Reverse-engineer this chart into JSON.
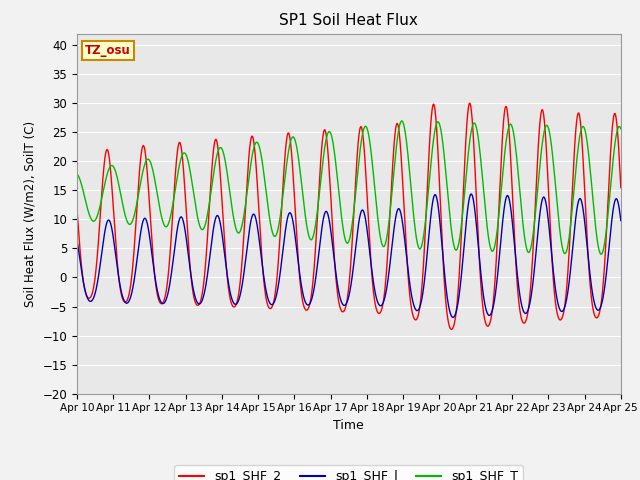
{
  "title": "SP1 Soil Heat Flux",
  "xlabel": "Time",
  "ylabel": "Soil Heat Flux (W/m2), SoilT (C)",
  "ylim": [
    -20,
    42
  ],
  "yticks": [
    -20,
    -15,
    -10,
    -5,
    0,
    5,
    10,
    15,
    20,
    25,
    30,
    35,
    40
  ],
  "bg_color": "#e8e8e8",
  "fig_bg_color": "#f2f2f2",
  "line_colors": {
    "shf2": "#ff0000",
    "shf1": "#0000bb",
    "shft": "#00bb00"
  },
  "legend_labels": [
    "sp1_SHF_2",
    "sp1_SHF_l",
    "sp1_SHF_T"
  ],
  "tz_label": "TZ_osu",
  "tz_bg": "#ffffcc",
  "tz_border": "#cc8800",
  "num_days": 15,
  "start_day": 10
}
